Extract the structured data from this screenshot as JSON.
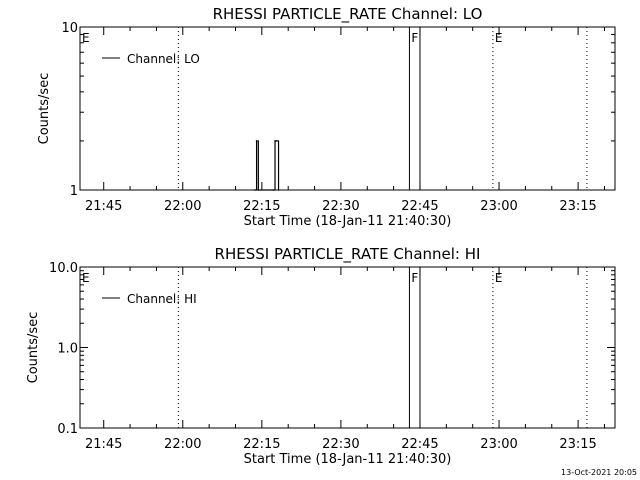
{
  "footer": {
    "timestamp": "13-Oct-2021 20:05"
  },
  "chart_data": [
    {
      "type": "line",
      "title": "RHESSI PARTICLE_RATE Channel: LO",
      "xlabel": "Start Time (18-Jan-11 21:40:30)",
      "ylabel": "Counts/sec",
      "y_scale": "log",
      "xlim": [
        "21:40:30",
        "23:22:00"
      ],
      "ylim": [
        1,
        10
      ],
      "x_ticks": [
        "21:45",
        "22:00",
        "22:15",
        "22:30",
        "22:45",
        "23:00",
        "23:15"
      ],
      "y_ticks": [
        "1",
        "10"
      ],
      "legend": {
        "position": "top-left",
        "entries": [
          "Channel: LO"
        ]
      },
      "series": [
        {
          "name": "Channel: LO",
          "x": [
            "22:13:40",
            "22:14:00",
            "22:14:20",
            "22:17:10",
            "22:17:30",
            "22:17:50",
            "22:18:10"
          ],
          "y": [
            1,
            2,
            1,
            1,
            2,
            2,
            1
          ]
        }
      ],
      "event_lines": [
        {
          "time": "21:40:30",
          "label": "E",
          "style": "dotted"
        },
        {
          "time": "21:59:10",
          "label": "",
          "style": "dotted"
        },
        {
          "time": "22:43:00",
          "label": "F",
          "style": "solid"
        },
        {
          "time": "22:45:00",
          "label": "",
          "style": "solid"
        },
        {
          "time": "22:58:50",
          "label": "E",
          "style": "dotted"
        },
        {
          "time": "23:16:40",
          "label": "",
          "style": "dotted"
        }
      ]
    },
    {
      "type": "line",
      "title": "RHESSI PARTICLE_RATE Channel: HI",
      "xlabel": "Start Time (18-Jan-11 21:40:30)",
      "ylabel": "Counts/sec",
      "y_scale": "log",
      "xlim": [
        "21:40:30",
        "23:22:00"
      ],
      "ylim": [
        0.1,
        10
      ],
      "x_ticks": [
        "21:45",
        "22:00",
        "22:15",
        "22:30",
        "22:45",
        "23:00",
        "23:15"
      ],
      "y_ticks": [
        "0.1",
        "1.0",
        "10.0"
      ],
      "legend": {
        "position": "top-left",
        "entries": [
          "Channel: HI"
        ]
      },
      "series": [
        {
          "name": "Channel: HI",
          "x": [],
          "y": []
        }
      ],
      "event_lines": [
        {
          "time": "21:40:30",
          "label": "E",
          "style": "dotted"
        },
        {
          "time": "21:59:10",
          "label": "",
          "style": "dotted"
        },
        {
          "time": "22:43:00",
          "label": "F",
          "style": "solid"
        },
        {
          "time": "22:45:00",
          "label": "",
          "style": "solid"
        },
        {
          "time": "22:58:50",
          "label": "E",
          "style": "dotted"
        },
        {
          "time": "23:16:40",
          "label": "",
          "style": "dotted"
        }
      ]
    }
  ]
}
